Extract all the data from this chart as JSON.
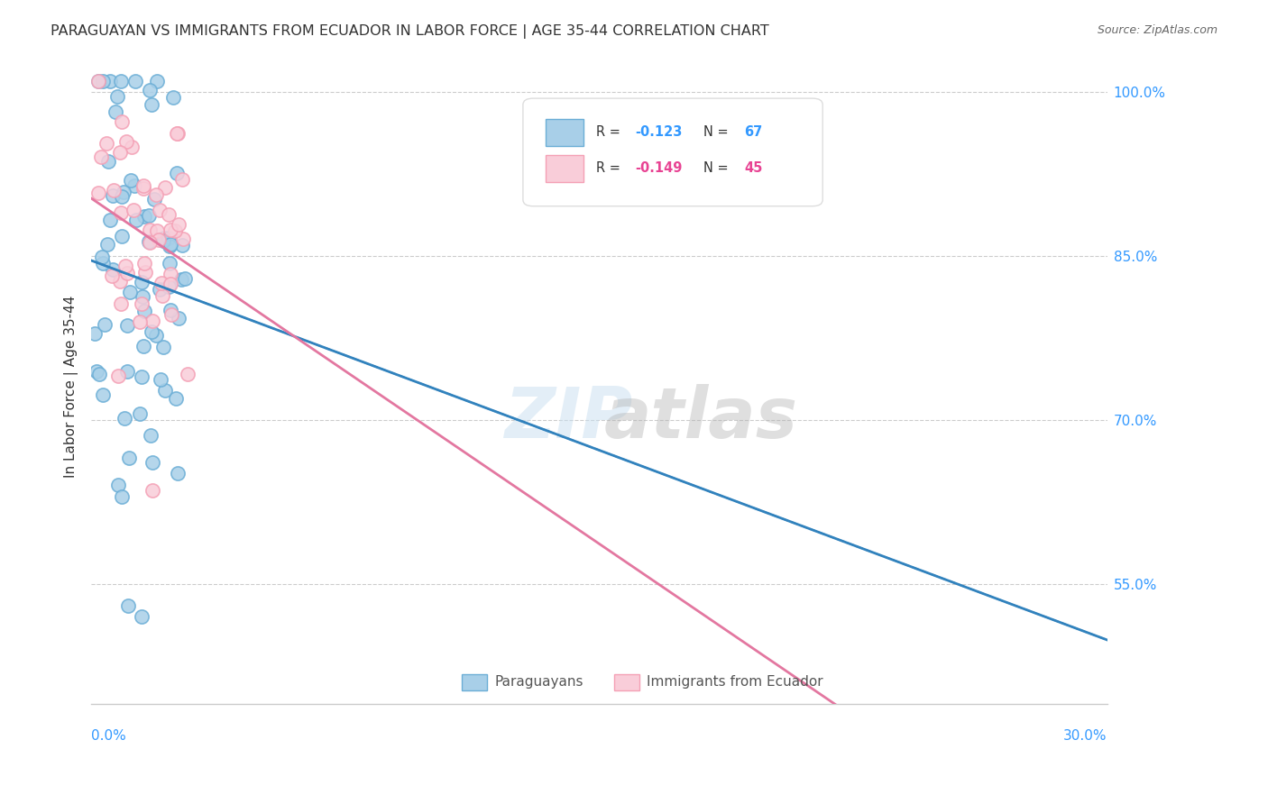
{
  "title": "PARAGUAYAN VS IMMIGRANTS FROM ECUADOR IN LABOR FORCE | AGE 35-44 CORRELATION CHART",
  "source": "Source: ZipAtlas.com",
  "ylabel": "In Labor Force | Age 35-44",
  "xmin": 0.0,
  "xmax": 0.3,
  "ymin": 0.44,
  "ymax": 1.02,
  "r_paraguayan": -0.123,
  "n_paraguayan": 67,
  "r_ecuador": -0.149,
  "n_ecuador": 45,
  "blue_color": "#6baed6",
  "blue_fill": "#a8cfe8",
  "pink_color": "#f4a0b5",
  "pink_fill": "#f9cdd9",
  "blue_line_color": "#3182bd",
  "pink_line_color": "#e377a0",
  "legend_blue_label": "Paraguayans",
  "legend_pink_label": "Immigrants from Ecuador",
  "ytick_vals": [
    0.55,
    0.7,
    0.85,
    1.0
  ],
  "ytick_labels": [
    "55.0%",
    "70.0%",
    "85.0%",
    "100.0%"
  ]
}
